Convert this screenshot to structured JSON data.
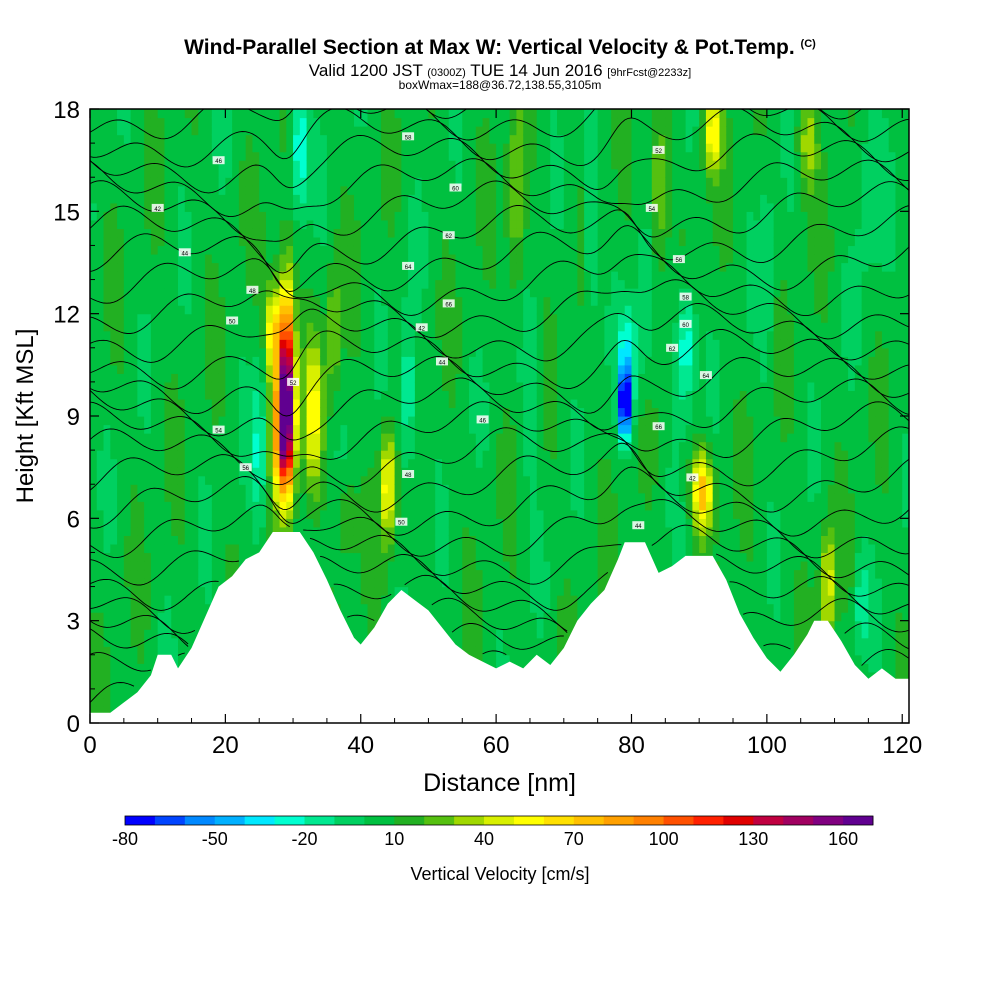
{
  "header": {
    "title": "Wind-Parallel Section at Max W: Vertical Velocity & Pot.Temp.",
    "copyright": "(C)",
    "subtitle_valid": "Valid 1200 JST",
    "subtitle_zulu": "(0300Z)",
    "subtitle_date": "TUE 14 Jun 2016",
    "subtitle_fcst": "[9hrFcst@2233z]",
    "subtitle2": "boxWmax=188@36.72,138.55,3105m"
  },
  "chart_data": {
    "type": "heatmap",
    "title": "Wind-Parallel Section at Max W: Vertical Velocity & Pot.Temp.",
    "xlabel": "Distance [nm]",
    "ylabel": "Height [Kft MSL]",
    "xlim": [
      0,
      121
    ],
    "ylim": [
      0,
      18
    ],
    "x_ticks": [
      0,
      20,
      40,
      60,
      80,
      100,
      120
    ],
    "y_ticks": [
      0,
      3,
      6,
      9,
      12,
      15,
      18
    ],
    "colorbar": {
      "label": "Vertical Velocity [cm/s]",
      "tick_values": [
        -80,
        -50,
        -20,
        10,
        40,
        70,
        100,
        130,
        160
      ],
      "levels": [
        -80,
        -70,
        -60,
        -50,
        -40,
        -30,
        -20,
        -10,
        0,
        10,
        20,
        30,
        40,
        50,
        60,
        70,
        80,
        90,
        100,
        110,
        120,
        130,
        140,
        150,
        160,
        170
      ],
      "colors": [
        "#0000ff",
        "#0044ff",
        "#0088ff",
        "#00b0ff",
        "#00e8ff",
        "#00ffd0",
        "#00e890",
        "#00d060",
        "#00c040",
        "#22b022",
        "#55c010",
        "#a0d800",
        "#d8f000",
        "#ffff00",
        "#ffe000",
        "#ffc000",
        "#ffa000",
        "#ff8000",
        "#ff5000",
        "#ff2000",
        "#e00000",
        "#c00040",
        "#a00060",
        "#800080",
        "#600090"
      ]
    },
    "theta_label_values": [
      42,
      44,
      46,
      48,
      50,
      52,
      54,
      56,
      58,
      60,
      62,
      64,
      66
    ]
  }
}
